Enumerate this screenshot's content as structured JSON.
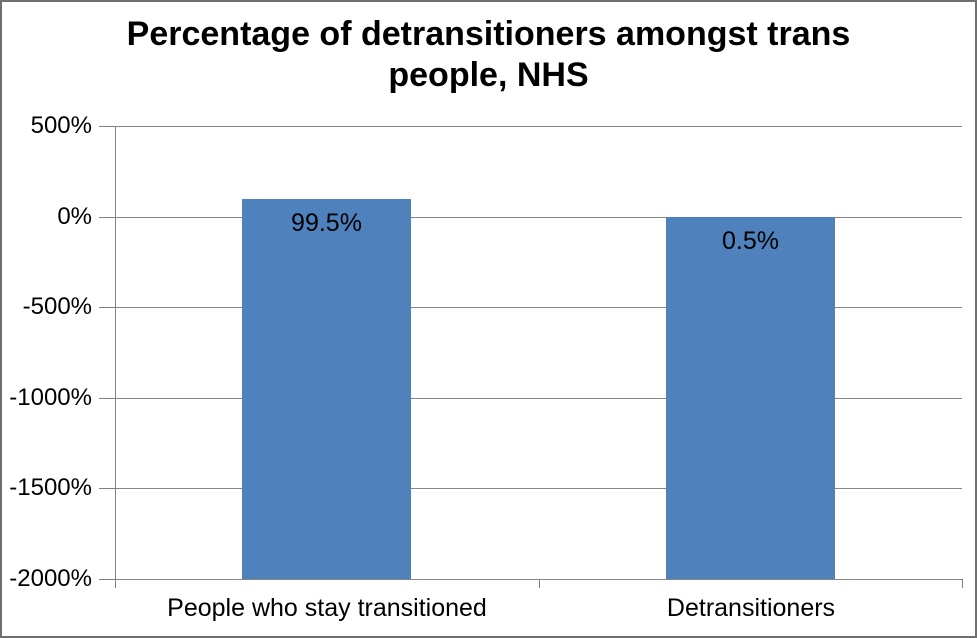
{
  "chart_data": {
    "type": "bar",
    "title": "Percentage of detransitioners amongst trans people, NHS",
    "title_lines": [
      "Percentage of detransitioners amongst trans",
      "people, NHS"
    ],
    "categories": [
      "People who stay transitioned",
      "Detransitioners"
    ],
    "values": [
      99.5,
      0.5
    ],
    "data_labels": [
      "99.5%",
      "0.5%"
    ],
    "data_label_position": "inside-end",
    "xlabel": "",
    "ylabel": "",
    "ylim": [
      -2000,
      500
    ],
    "yticks": [
      {
        "value": 500,
        "label": "500%"
      },
      {
        "value": 0,
        "label": "0%"
      },
      {
        "value": -500,
        "label": "-500%"
      },
      {
        "value": -1000,
        "label": "-1000%"
      },
      {
        "value": -1500,
        "label": "-1500%"
      },
      {
        "value": -2000,
        "label": "-2000%"
      }
    ],
    "bars_baseline": "axis_bottom",
    "grid": true,
    "legend": false,
    "colors": {
      "bar": "#4F81BD",
      "gridline": "#878787",
      "axis": "#808080",
      "text": "#000000",
      "background": "#FFFFFF",
      "border": "#6F6F6F"
    }
  }
}
